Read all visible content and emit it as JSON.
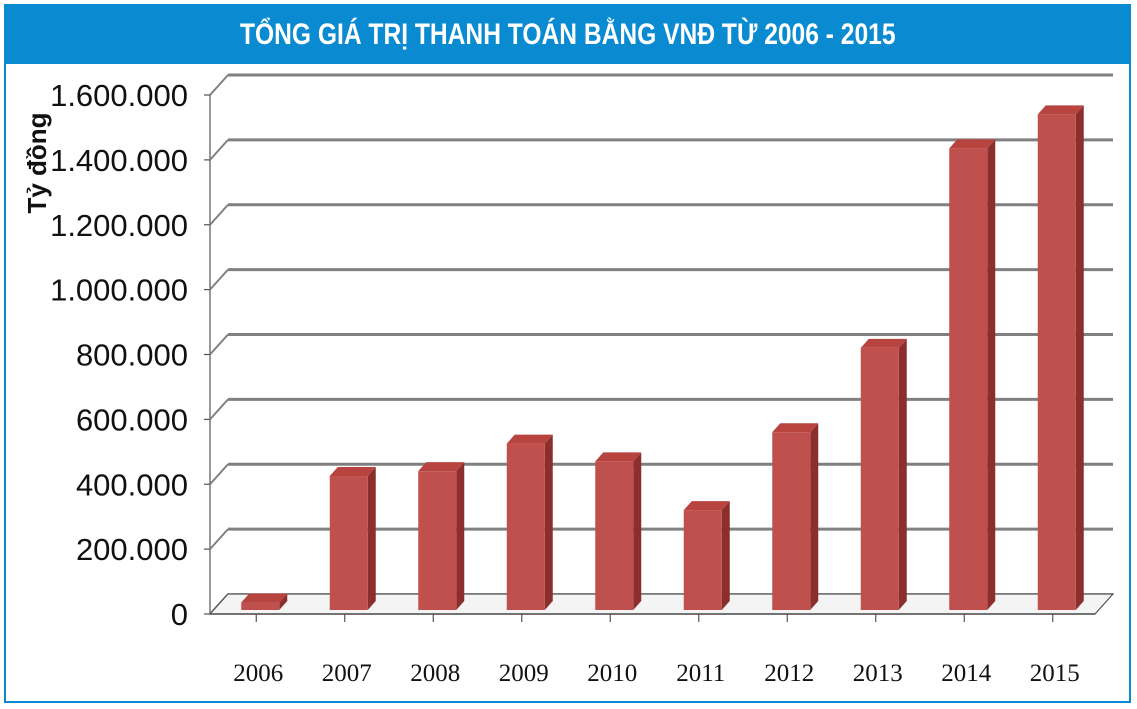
{
  "header": {
    "title": "TỔNG GIÁ TRỊ THANH TOÁN BẰNG VNĐ TỪ 2006 - 2015"
  },
  "colors": {
    "title_bar": "#0a8bd1",
    "bar_front": "#c0504d",
    "bar_side": "#8c2e2b",
    "bar_top": "#b84440",
    "grid": "#808080"
  },
  "chart_data": {
    "type": "bar",
    "title": "TỔNG GIÁ TRỊ THANH TOÁN BẰNG VNĐ TỪ 2006 - 2015",
    "xlabel": "",
    "ylabel": "Tỷ đồng",
    "categories": [
      "2006",
      "2007",
      "2008",
      "2009",
      "2010",
      "2011",
      "2012",
      "2013",
      "2014",
      "2015"
    ],
    "series": [
      {
        "values": [
          60000,
          450000,
          465000,
          550000,
          495000,
          345000,
          585000,
          845000,
          1460000,
          1565000
        ]
      }
    ],
    "ylim": [
      0,
      1600000
    ],
    "yticks": [
      0,
      200000,
      400000,
      600000,
      800000,
      1000000,
      1200000,
      1400000,
      1600000
    ],
    "ytick_labels": [
      "0",
      "200.000",
      "400.000",
      "600.000",
      "800.000",
      "1.000.000",
      "1.200.000",
      "1.400.000",
      "1.600.000"
    ],
    "grid": true,
    "style": "3d-column"
  }
}
